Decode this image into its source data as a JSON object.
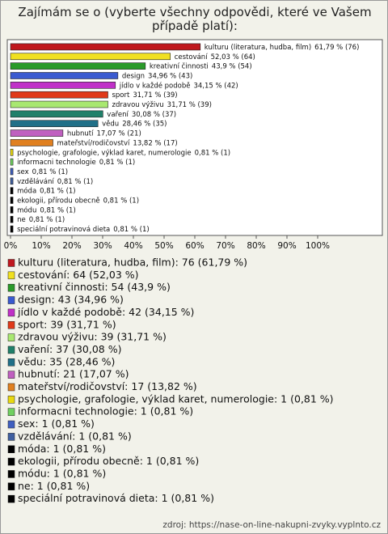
{
  "chart_data": {
    "type": "bar",
    "orientation": "horizontal",
    "title": "Zajímám se o (vyberte všechny odpovědi, které ve Vašem případě platí):",
    "categories": [
      "kulturu (literatura, hudba, film)",
      "cestování",
      "kreativní činnosti",
      "design",
      "jídlo v každé podobě",
      "sport",
      "zdravou výživu",
      "vaření",
      "vědu",
      "hubnutí",
      "mateřství/rodičovství",
      "psychologie, grafologie, výklad karet, numerologie",
      "informacni technologie",
      "sex",
      "vzdělávání",
      "móda",
      "ekologii, přírodu obecně",
      "módu",
      "ne",
      "speciální potravinová dieta"
    ],
    "values": [
      61.79,
      52.03,
      43.9,
      34.96,
      34.15,
      31.71,
      31.71,
      30.08,
      28.46,
      17.07,
      13.82,
      0.81,
      0.81,
      0.81,
      0.81,
      0.81,
      0.81,
      0.81,
      0.81,
      0.81
    ],
    "value_labels": [
      "61,79 % (76)",
      "52,03 % (64)",
      "43,9 % (54)",
      "34,96 % (43)",
      "34,15 % (42)",
      "31,71 % (39)",
      "31,71 % (39)",
      "30,08 % (37)",
      "28,46 % (35)",
      "17,07 % (21)",
      "13,82 % (17)",
      "0,81 % (1)",
      "0,81 % (1)",
      "0,81 % (1)",
      "0,81 % (1)",
      "0,81 % (1)",
      "0,81 % (1)",
      "0,81 % (1)",
      "0,81 % (1)",
      "0,81 % (1)"
    ],
    "legend_labels": [
      "kulturu (literatura, hudba, film): 76 (61,79 %)",
      "cestování: 64 (52,03 %)",
      "kreativní činnosti: 54 (43,9 %)",
      "design: 43 (34,96 %)",
      "jídlo v každé podobě: 42 (34,15 %)",
      "sport: 39 (31,71 %)",
      "zdravou výživu: 39 (31,71 %)",
      "vaření: 37 (30,08 %)",
      "vědu: 35 (28,46 %)",
      "hubnutí: 21 (17,07 %)",
      "mateřství/rodičovství: 17 (13,82 %)",
      "psychologie, grafologie, výklad karet, numerologie: 1 (0,81 %)",
      "informacni technologie: 1 (0,81 %)",
      "sex: 1 (0,81 %)",
      "vzdělávání: 1 (0,81 %)",
      "móda: 1 (0,81 %)",
      "ekologii, přírodu obecně: 1 (0,81 %)",
      "módu: 1 (0,81 %)",
      "ne: 1 (0,81 %)",
      "speciální potravinová dieta: 1 (0,81 %)"
    ],
    "colors": [
      "#c0181f",
      "#f0e020",
      "#2a9a2a",
      "#3a5ad0",
      "#c030c8",
      "#e03a1a",
      "#a8e870",
      "#20806a",
      "#207088",
      "#c060c0",
      "#e08020",
      "#e8d810",
      "#70d060",
      "#4060c0",
      "#4060a0",
      "#000000",
      "#000000",
      "#000000",
      "#000000",
      "#000000"
    ],
    "xlim": [
      0,
      100
    ],
    "xticks": [
      {
        "value": 0,
        "label": "0%"
      },
      {
        "value": 10,
        "label": "10%"
      },
      {
        "value": 20,
        "label": "20%"
      },
      {
        "value": 30,
        "label": "30%"
      },
      {
        "value": 40,
        "label": "40%"
      },
      {
        "value": 50,
        "label": "50%"
      },
      {
        "value": 60,
        "label": "60%"
      },
      {
        "value": 70,
        "label": "70%"
      },
      {
        "value": 80,
        "label": "80%"
      },
      {
        "value": 90,
        "label": "90%"
      },
      {
        "value": 100,
        "label": "100%"
      }
    ],
    "source": "zdroj: https://nase-on-line-nakupni-zvyky.vyplnto.cz"
  }
}
